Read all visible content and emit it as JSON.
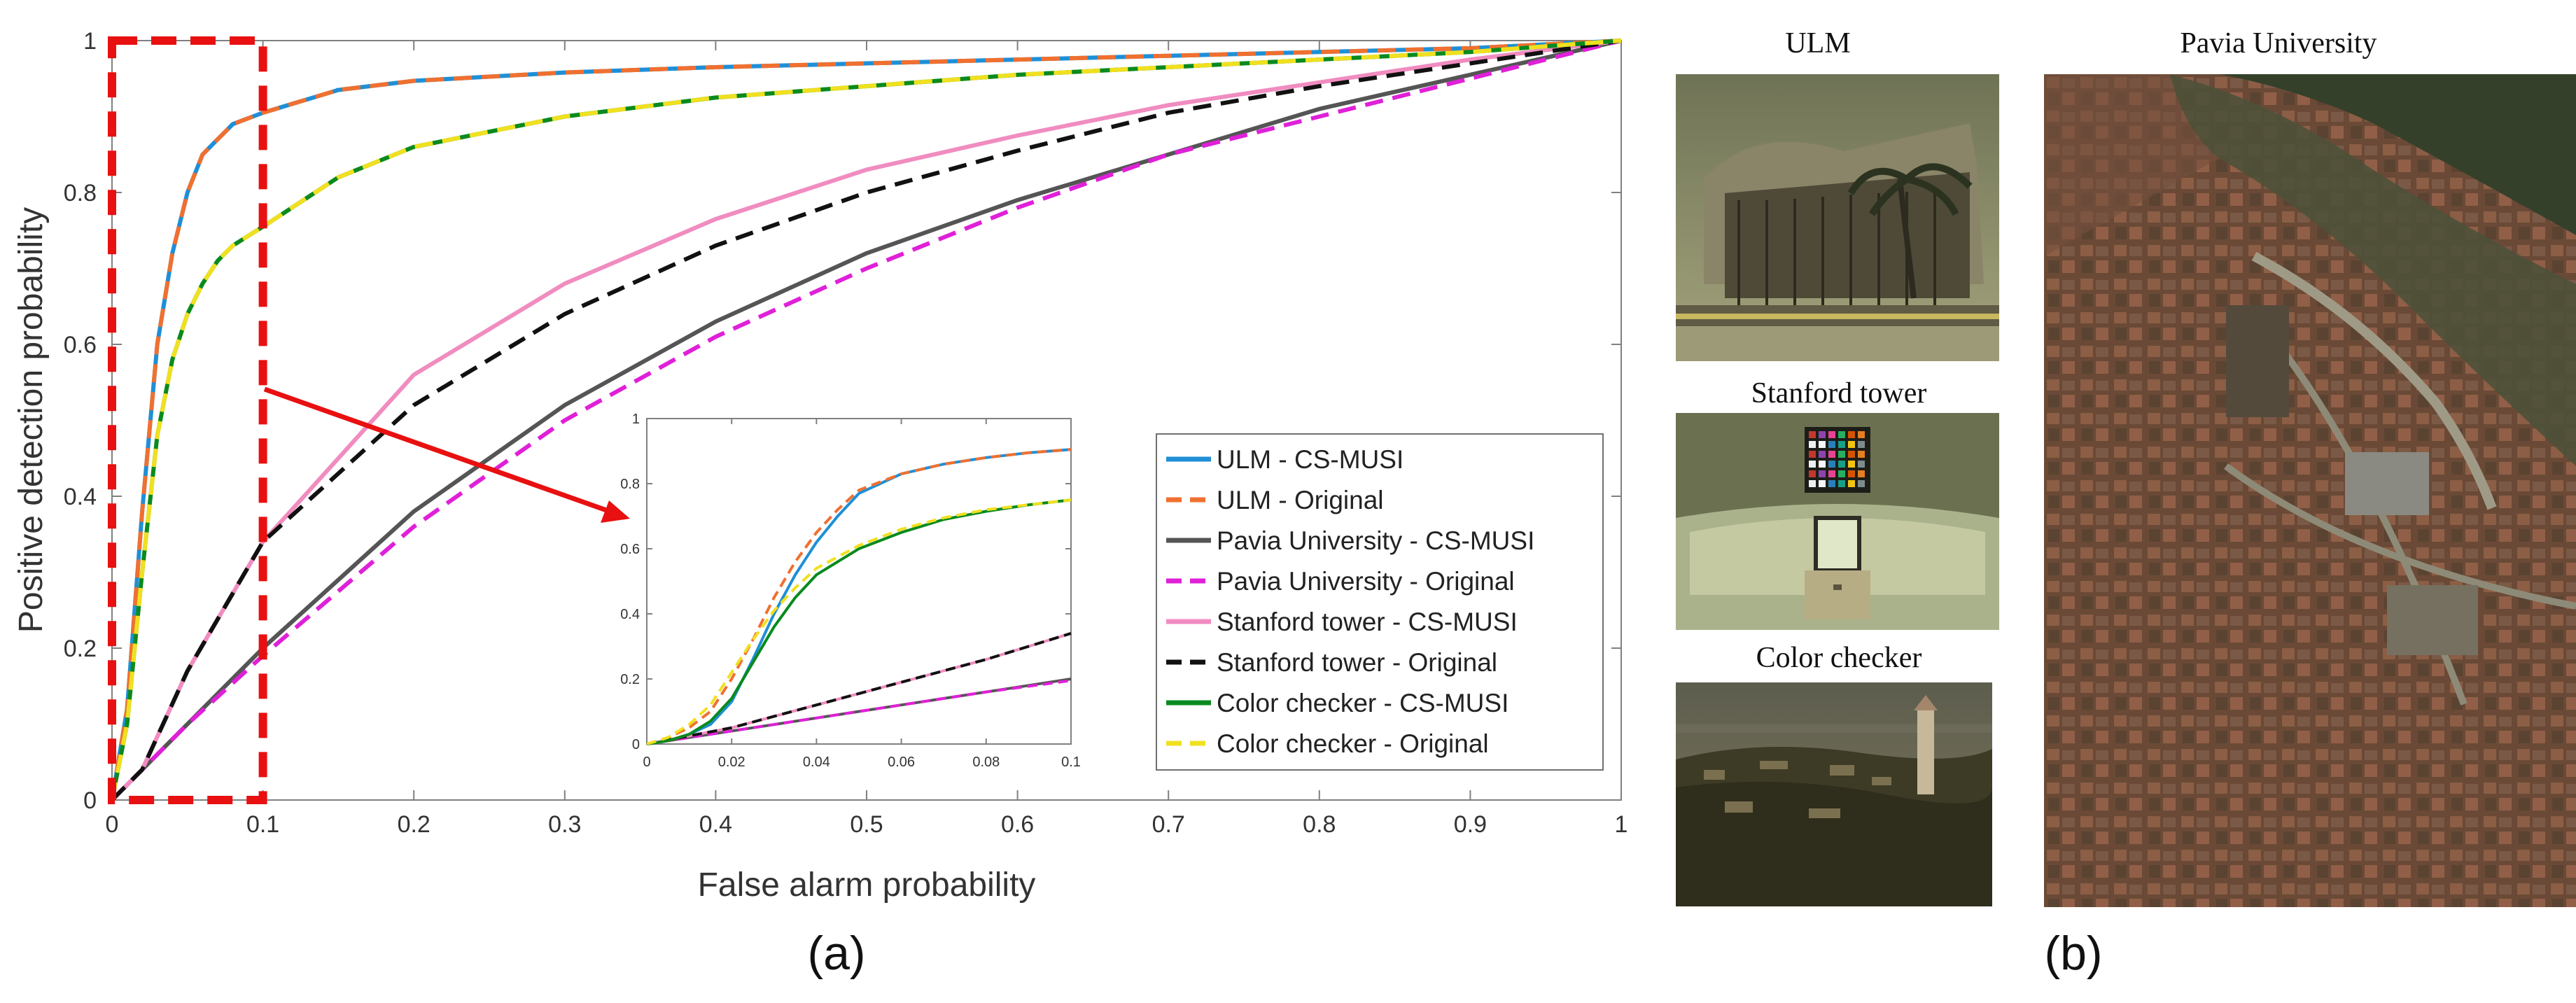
{
  "chart_data": [
    {
      "type": "line",
      "panel": "(a)",
      "title": "",
      "xlabel": "False alarm probability",
      "ylabel": "Positive detection probability",
      "xlim": [
        0,
        1
      ],
      "ylim": [
        0,
        1
      ],
      "xticks": [
        "0",
        "0.1",
        "0.2",
        "0.3",
        "0.4",
        "0.5",
        "0.6",
        "0.7",
        "0.8",
        "0.9",
        "1"
      ],
      "yticks": [
        "0",
        "0.2",
        "0.4",
        "0.6",
        "0.8",
        "1"
      ],
      "grid": false,
      "legend_position": "bottom-right",
      "series": [
        {
          "name": "ULM - CS-MUSI",
          "color": "#1f8fd6",
          "dash": "solid",
          "x": [
            0,
            0.01,
            0.02,
            0.03,
            0.04,
            0.05,
            0.06,
            0.07,
            0.08,
            0.1,
            0.15,
            0.2,
            0.3,
            0.4,
            0.5,
            0.6,
            0.7,
            0.8,
            0.9,
            1.0
          ],
          "y": [
            0,
            0.12,
            0.38,
            0.6,
            0.72,
            0.8,
            0.85,
            0.87,
            0.89,
            0.905,
            0.935,
            0.947,
            0.958,
            0.965,
            0.97,
            0.975,
            0.98,
            0.985,
            0.99,
            1.0
          ]
        },
        {
          "name": "ULM - Original",
          "color": "#f07030",
          "dash": "dashed",
          "x": [
            0,
            0.01,
            0.02,
            0.03,
            0.04,
            0.05,
            0.06,
            0.07,
            0.08,
            0.1,
            0.15,
            0.2,
            0.3,
            0.4,
            0.5,
            0.6,
            0.7,
            0.8,
            0.9,
            1.0
          ],
          "y": [
            0,
            0.12,
            0.38,
            0.6,
            0.72,
            0.8,
            0.85,
            0.87,
            0.89,
            0.905,
            0.935,
            0.947,
            0.958,
            0.965,
            0.97,
            0.975,
            0.98,
            0.985,
            0.99,
            1.0
          ]
        },
        {
          "name": "Pavia University - CS-MUSI",
          "color": "#555555",
          "dash": "solid",
          "x": [
            0,
            0.02,
            0.05,
            0.1,
            0.2,
            0.3,
            0.4,
            0.5,
            0.6,
            0.7,
            0.8,
            0.9,
            1.0
          ],
          "y": [
            0,
            0.04,
            0.1,
            0.2,
            0.38,
            0.52,
            0.63,
            0.72,
            0.79,
            0.85,
            0.91,
            0.955,
            1.0
          ]
        },
        {
          "name": "Pavia University - Original",
          "color": "#e020d8",
          "dash": "dashed",
          "x": [
            0,
            0.02,
            0.05,
            0.1,
            0.2,
            0.3,
            0.4,
            0.5,
            0.6,
            0.7,
            0.8,
            0.9,
            1.0
          ],
          "y": [
            0,
            0.04,
            0.1,
            0.19,
            0.36,
            0.5,
            0.61,
            0.7,
            0.78,
            0.85,
            0.9,
            0.95,
            1.0
          ]
        },
        {
          "name": "Stanford tower - CS-MUSI",
          "color": "#f08cc0",
          "dash": "solid",
          "x": [
            0,
            0.02,
            0.05,
            0.1,
            0.2,
            0.3,
            0.4,
            0.5,
            0.6,
            0.7,
            0.8,
            0.9,
            1.0
          ],
          "y": [
            0,
            0.04,
            0.17,
            0.34,
            0.56,
            0.68,
            0.765,
            0.83,
            0.875,
            0.915,
            0.945,
            0.975,
            1.0
          ]
        },
        {
          "name": "Stanford tower - Original",
          "color": "#111111",
          "dash": "dashed",
          "x": [
            0,
            0.02,
            0.05,
            0.1,
            0.2,
            0.3,
            0.4,
            0.5,
            0.6,
            0.7,
            0.8,
            0.9,
            1.0
          ],
          "y": [
            0,
            0.04,
            0.17,
            0.34,
            0.52,
            0.64,
            0.73,
            0.8,
            0.855,
            0.905,
            0.94,
            0.97,
            1.0
          ]
        },
        {
          "name": "Color checker - CS-MUSI",
          "color": "#0a8a1e",
          "dash": "solid",
          "x": [
            0,
            0.01,
            0.02,
            0.03,
            0.04,
            0.05,
            0.06,
            0.07,
            0.08,
            0.1,
            0.15,
            0.2,
            0.3,
            0.4,
            0.5,
            0.6,
            0.7,
            0.8,
            0.9,
            1.0
          ],
          "y": [
            0,
            0.1,
            0.3,
            0.48,
            0.58,
            0.64,
            0.68,
            0.71,
            0.73,
            0.755,
            0.82,
            0.86,
            0.9,
            0.925,
            0.94,
            0.955,
            0.965,
            0.975,
            0.985,
            1.0
          ]
        },
        {
          "name": "Color checker - Original",
          "color": "#f0e020",
          "dash": "dashed",
          "x": [
            0,
            0.01,
            0.02,
            0.03,
            0.04,
            0.05,
            0.06,
            0.07,
            0.08,
            0.1,
            0.15,
            0.2,
            0.3,
            0.4,
            0.5,
            0.6,
            0.7,
            0.8,
            0.9,
            1.0
          ],
          "y": [
            0,
            0.1,
            0.3,
            0.48,
            0.58,
            0.64,
            0.68,
            0.71,
            0.73,
            0.755,
            0.82,
            0.86,
            0.9,
            0.925,
            0.94,
            0.955,
            0.965,
            0.975,
            0.985,
            1.0
          ]
        }
      ],
      "highlight_region": {
        "x": [
          0,
          0.1
        ],
        "y": [
          0,
          1
        ],
        "color": "#e81010"
      },
      "annotation": "red arrow from highlighted region to zoomed inset"
    },
    {
      "type": "line",
      "panel": "inset",
      "title": "",
      "xlim": [
        0,
        0.1
      ],
      "ylim": [
        0,
        1
      ],
      "xticks": [
        "0",
        "0.02",
        "0.04",
        "0.06",
        "0.08",
        "0.1"
      ],
      "yticks": [
        "0",
        "0.2",
        "0.4",
        "0.6",
        "0.8",
        "1"
      ],
      "grid": false,
      "series": [
        {
          "name": "ULM - CS-MUSI",
          "color": "#1f8fd6",
          "dash": "solid",
          "x": [
            0,
            0.005,
            0.01,
            0.015,
            0.02,
            0.025,
            0.03,
            0.035,
            0.04,
            0.045,
            0.05,
            0.06,
            0.07,
            0.08,
            0.09,
            0.1
          ],
          "y": [
            0,
            0.01,
            0.03,
            0.06,
            0.13,
            0.26,
            0.4,
            0.52,
            0.62,
            0.7,
            0.77,
            0.83,
            0.86,
            0.88,
            0.895,
            0.905
          ]
        },
        {
          "name": "ULM - Original",
          "color": "#f07030",
          "dash": "dashed",
          "x": [
            0,
            0.005,
            0.01,
            0.015,
            0.02,
            0.025,
            0.03,
            0.035,
            0.04,
            0.045,
            0.05,
            0.06,
            0.07,
            0.08,
            0.09,
            0.1
          ],
          "y": [
            0,
            0.02,
            0.05,
            0.1,
            0.2,
            0.32,
            0.45,
            0.56,
            0.65,
            0.72,
            0.78,
            0.83,
            0.86,
            0.88,
            0.895,
            0.905
          ]
        },
        {
          "name": "Pavia University - CS-MUSI",
          "color": "#555555",
          "dash": "solid",
          "x": [
            0,
            0.02,
            0.04,
            0.06,
            0.08,
            0.1
          ],
          "y": [
            0,
            0.04,
            0.08,
            0.12,
            0.16,
            0.2
          ]
        },
        {
          "name": "Pavia University - Original",
          "color": "#e020d8",
          "dash": "dashed",
          "x": [
            0,
            0.02,
            0.04,
            0.06,
            0.08,
            0.1
          ],
          "y": [
            0,
            0.04,
            0.08,
            0.12,
            0.16,
            0.195
          ]
        },
        {
          "name": "Stanford tower - CS-MUSI",
          "color": "#f08cc0",
          "dash": "solid",
          "x": [
            0,
            0.02,
            0.04,
            0.06,
            0.08,
            0.1
          ],
          "y": [
            0,
            0.05,
            0.12,
            0.19,
            0.26,
            0.34
          ]
        },
        {
          "name": "Stanford tower - Original",
          "color": "#111111",
          "dash": "dashed",
          "x": [
            0,
            0.02,
            0.04,
            0.06,
            0.08,
            0.1
          ],
          "y": [
            0,
            0.05,
            0.12,
            0.19,
            0.26,
            0.34
          ]
        },
        {
          "name": "Color checker - CS-MUSI",
          "color": "#0a8a1e",
          "dash": "solid",
          "x": [
            0,
            0.005,
            0.01,
            0.015,
            0.02,
            0.025,
            0.03,
            0.035,
            0.04,
            0.05,
            0.06,
            0.07,
            0.08,
            0.09,
            0.1
          ],
          "y": [
            0,
            0.01,
            0.03,
            0.07,
            0.14,
            0.25,
            0.36,
            0.45,
            0.52,
            0.6,
            0.65,
            0.69,
            0.715,
            0.735,
            0.75
          ]
        },
        {
          "name": "Color checker - Original",
          "color": "#f0e020",
          "dash": "dashed",
          "x": [
            0,
            0.005,
            0.01,
            0.015,
            0.02,
            0.025,
            0.03,
            0.035,
            0.04,
            0.05,
            0.06,
            0.07,
            0.08,
            0.09,
            0.1
          ],
          "y": [
            0,
            0.02,
            0.06,
            0.12,
            0.22,
            0.32,
            0.41,
            0.48,
            0.54,
            0.61,
            0.66,
            0.695,
            0.72,
            0.735,
            0.75
          ]
        }
      ]
    }
  ],
  "panel_labels": {
    "a": "(a)",
    "b": "(b)"
  },
  "photos": {
    "ulm": {
      "title": "ULM"
    },
    "stanford": {
      "title": "Stanford tower"
    },
    "checker": {
      "title": "Color checker"
    },
    "pavia": {
      "title": "Pavia University"
    }
  }
}
